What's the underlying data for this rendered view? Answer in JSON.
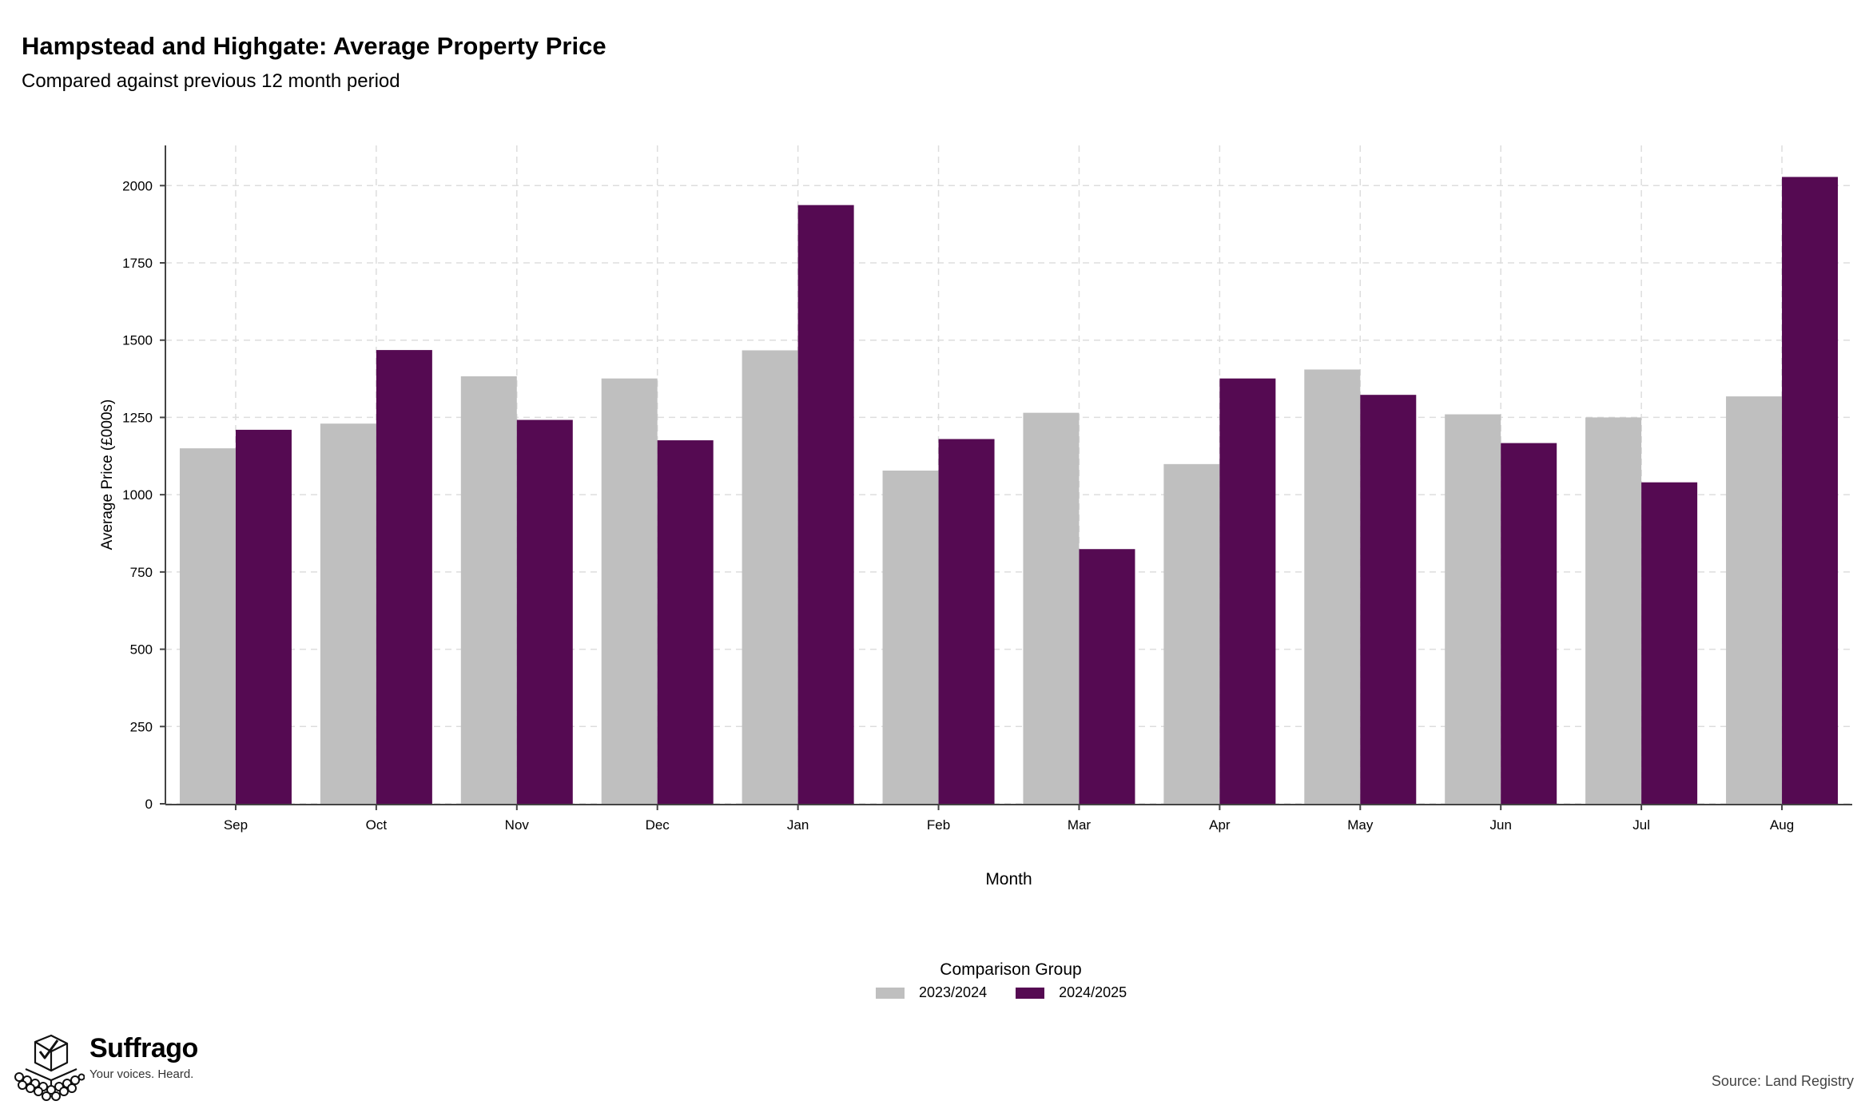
{
  "header": {
    "title": "Hampstead and Highgate: Average Property Price",
    "subtitle": "Compared against previous 12 month period"
  },
  "chart_data": {
    "type": "bar",
    "title": "Hampstead and Highgate: Average Property Price",
    "subtitle": "Compared against previous 12 month period",
    "xlabel": "Month",
    "ylabel": "Average Price (£000s)",
    "categories": [
      "Sep",
      "Oct",
      "Nov",
      "Dec",
      "Jan",
      "Feb",
      "Mar",
      "Apr",
      "May",
      "Jun",
      "Jul",
      "Aug"
    ],
    "series": [
      {
        "name": "2023/2024",
        "color": "#bfbfbf",
        "values": [
          1150,
          1230,
          1383,
          1376,
          1467,
          1078,
          1265,
          1099,
          1405,
          1260,
          1250,
          1318
        ]
      },
      {
        "name": "2024/2025",
        "color": "#550a52",
        "values": [
          1210,
          1468,
          1242,
          1176,
          1937,
          1180,
          824,
          1376,
          1323,
          1167,
          1040,
          2028
        ]
      }
    ],
    "ylim": [
      0,
      2130
    ],
    "yticks": [
      0,
      250,
      500,
      750,
      1000,
      1250,
      1500,
      1750,
      2000
    ],
    "grid": true,
    "legend_title": "Comparison Group",
    "legend_position": "bottom-center"
  },
  "footer": {
    "brand": "Suffrago",
    "tagline": "Your voices. Heard.",
    "source": "Source: Land Registry"
  }
}
